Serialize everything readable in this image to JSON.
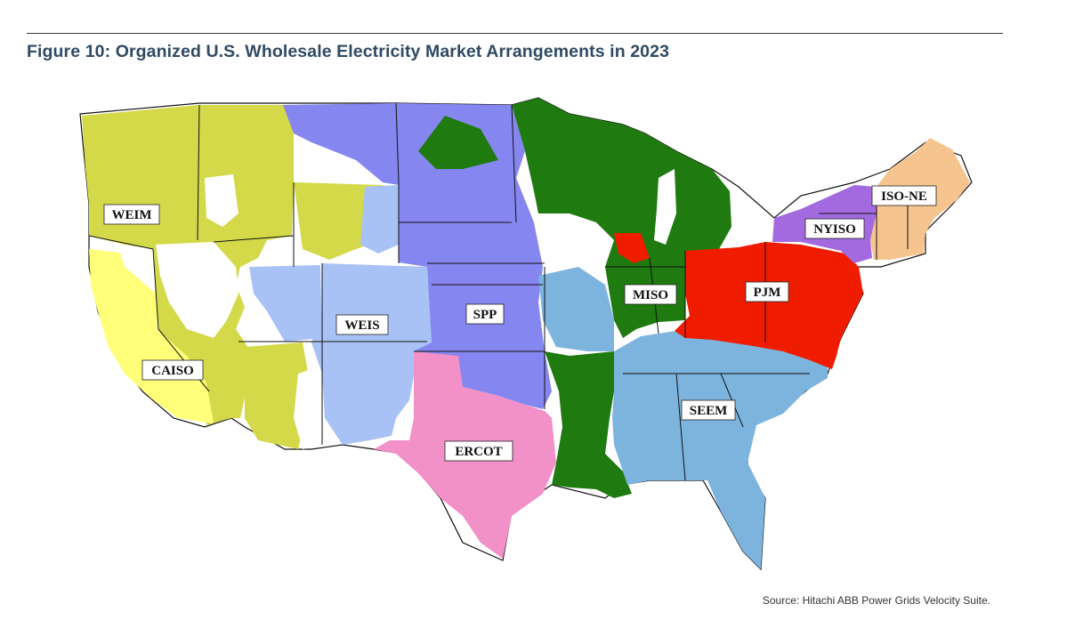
{
  "figure": {
    "title": "Figure 10: Organized U.S. Wholesale Electricity Market Arrangements in 2023",
    "source": "Source: Hitachi ABB Power Grids Velocity Suite."
  },
  "map": {
    "regions": [
      {
        "id": "weim",
        "label": "WEIM",
        "color": "#d4d94a"
      },
      {
        "id": "caiso",
        "label": "CAISO",
        "color": "#ffff7a"
      },
      {
        "id": "weis",
        "label": "WEIS",
        "color": "#a9c2f5"
      },
      {
        "id": "spp",
        "label": "SPP",
        "color": "#8686f0"
      },
      {
        "id": "ercot",
        "label": "ERCOT",
        "color": "#f290c8"
      },
      {
        "id": "miso",
        "label": "MISO",
        "color": "#1f7a10"
      },
      {
        "id": "pjm",
        "label": "PJM",
        "color": "#ef1c00"
      },
      {
        "id": "nyiso",
        "label": "NYISO",
        "color": "#a36ae0"
      },
      {
        "id": "isone",
        "label": "ISO-NE",
        "color": "#f6c48e"
      },
      {
        "id": "seem",
        "label": "SEEM",
        "color": "#7db4de"
      }
    ],
    "non_market_color": "#ffffff"
  }
}
